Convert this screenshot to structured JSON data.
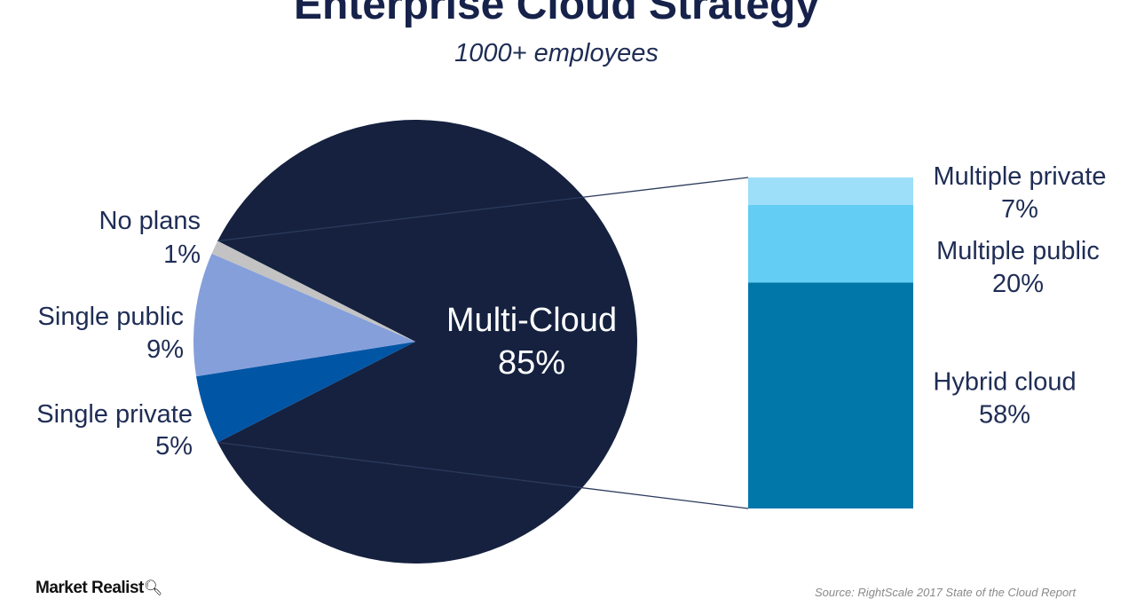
{
  "header": {
    "title": "Enterprise Cloud Strategy",
    "subtitle": "1000+ employees"
  },
  "chart_data": {
    "type": "pie",
    "title": "Enterprise Cloud Strategy",
    "subtitle": "1000+ employees",
    "slices": [
      {
        "label": "Multi-Cloud",
        "value": 85,
        "value_label": "85%",
        "color": "#15213f"
      },
      {
        "label": "Single private",
        "value": 5,
        "value_label": "5%",
        "color": "#0055a5"
      },
      {
        "label": "Single public",
        "value": 9,
        "value_label": "9%",
        "color": "#859fdb"
      },
      {
        "label": "No plans",
        "value": 1,
        "value_label": "1%",
        "color": "#c3c3c3"
      }
    ],
    "breakdown": {
      "of": "Multi-Cloud",
      "type": "stacked-bar",
      "segments": [
        {
          "label": "Hybrid cloud",
          "value": 58,
          "value_label": "58%",
          "color": "#0077a8"
        },
        {
          "label": "Multiple public",
          "value": 20,
          "value_label": "20%",
          "color": "#63cdf4"
        },
        {
          "label": "Multiple private",
          "value": 7,
          "value_label": "7%",
          "color": "#9ddef8"
        }
      ]
    }
  },
  "footer": {
    "logo_text": "Market Realist",
    "logo_icon": "magnifier-icon",
    "source": "Source: RightScale 2017 State of the Cloud Report"
  }
}
